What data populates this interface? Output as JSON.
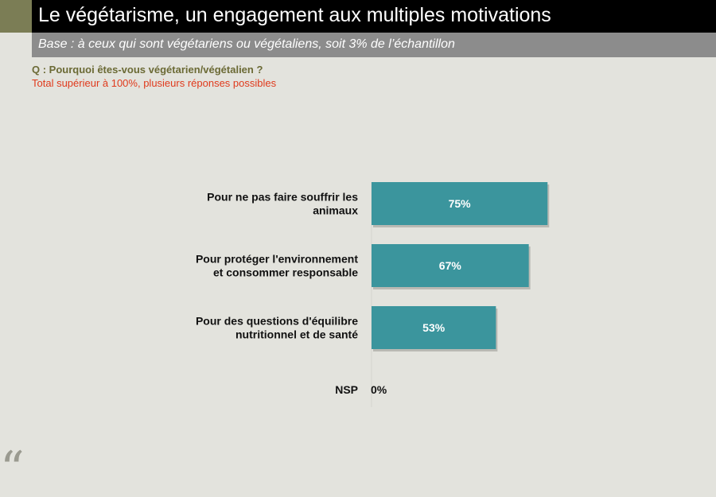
{
  "header": {
    "title": "Le végétarisme, un engagement aux multiples motivations",
    "subtitle": "Base : à ceux qui sont végétariens ou végétaliens, soit 3% de l’échantillon"
  },
  "question": "Q : Pourquoi êtes-vous végétarien/végétalien ?",
  "note": "Total supérieur à 100%, plusieurs réponses possibles",
  "colors": {
    "bar": "#3b959d",
    "question": "#6b6a35",
    "note": "#e03a1c"
  },
  "chart_data": {
    "type": "bar",
    "orientation": "horizontal",
    "categories": [
      [
        "Pour ne pas faire souffrir les",
        "animaux"
      ],
      [
        "Pour protéger l'environnement",
        "et consommer responsable"
      ],
      [
        "Pour des questions d'équilibre",
        "nutritionnel et de santé"
      ],
      [
        "NSP"
      ]
    ],
    "values": [
      75,
      67,
      53,
      0
    ],
    "value_labels": [
      "75%",
      "67%",
      "53%",
      "0%"
    ],
    "xlim": [
      0,
      100
    ],
    "grid": false,
    "legend": "none"
  }
}
